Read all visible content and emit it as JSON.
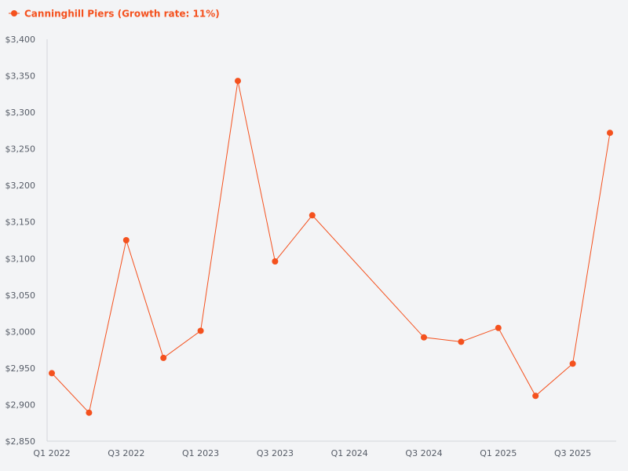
{
  "chart_data": {
    "type": "line",
    "categories": [
      "Q1 2022",
      "Q2 2022",
      "Q3 2022",
      "Q4 2022",
      "Q1 2023",
      "Q2 2023",
      "Q3 2023",
      "Q4 2023",
      "Q1 2024",
      "Q2 2024",
      "Q3 2024",
      "Q4 2024",
      "Q1 2025",
      "Q2 2025",
      "Q3 2025",
      "Q4 2025"
    ],
    "x_tick_labels": [
      "Q1 2022",
      "Q3 2022",
      "Q1 2023",
      "Q3 2023",
      "Q1 2024",
      "Q3 2024",
      "Q1 2025",
      "Q3 2025"
    ],
    "series": [
      {
        "name": "Canninghill Piers (Growth rate: 11%)",
        "color": "#f4511e",
        "values": [
          2943,
          2889,
          3125,
          2964,
          3001,
          3343,
          3096,
          3159,
          null,
          null,
          2992,
          2986,
          3005,
          2912,
          2956,
          3272
        ]
      }
    ],
    "ylim": [
      2850,
      3400
    ],
    "y_ticks": [
      2850,
      2900,
      2950,
      3000,
      3050,
      3100,
      3150,
      3200,
      3250,
      3300,
      3350,
      3400
    ],
    "y_tick_prefix": "$",
    "grid": false,
    "legend_position": "top-left",
    "title": "",
    "xlabel": "",
    "ylabel": ""
  }
}
